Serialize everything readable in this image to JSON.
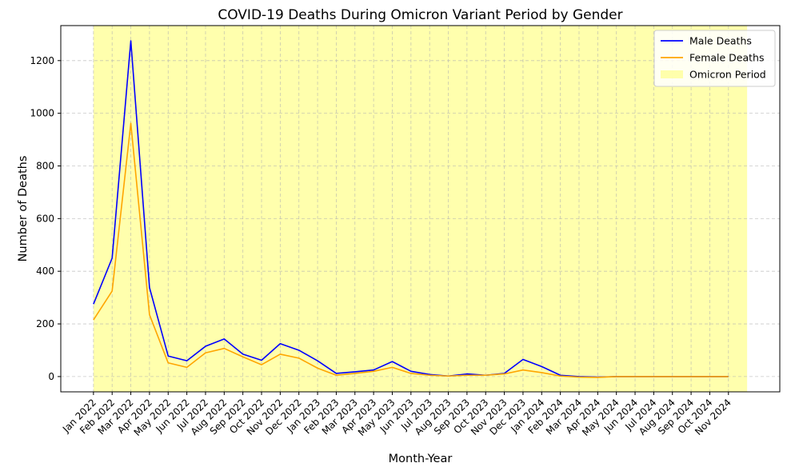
{
  "chart_data": {
    "type": "line",
    "title": "COVID-19 Deaths During Omicron Variant Period by Gender",
    "xlabel": "Month-Year",
    "ylabel": "Number of Deaths",
    "categories": [
      "Jan 2022",
      "Feb 2022",
      "Mar 2022",
      "Apr 2022",
      "May 2022",
      "Jun 2022",
      "Jul 2022",
      "Aug 2022",
      "Sep 2022",
      "Oct 2022",
      "Nov 2022",
      "Dec 2022",
      "Jan 2023",
      "Feb 2023",
      "Mar 2023",
      "Apr 2023",
      "May 2023",
      "Jun 2023",
      "Jul 2023",
      "Aug 2023",
      "Sep 2023",
      "Oct 2023",
      "Nov 2023",
      "Dec 2023",
      "Jan 2024",
      "Feb 2024",
      "Mar 2024",
      "Apr 2024",
      "May 2024",
      "Jun 2024",
      "Jul 2024",
      "Aug 2024",
      "Sep 2024",
      "Oct 2024",
      "Nov 2024"
    ],
    "series": [
      {
        "name": "Male Deaths",
        "color": "#0000ff",
        "values": [
          275,
          450,
          1275,
          338,
          78,
          60,
          115,
          143,
          85,
          62,
          125,
          100,
          60,
          12,
          18,
          25,
          57,
          20,
          8,
          2,
          10,
          5,
          12,
          65,
          38,
          5,
          0,
          -2,
          0,
          0,
          0,
          0,
          0,
          0,
          0
        ]
      },
      {
        "name": "Female Deaths",
        "color": "#ffa500",
        "values": [
          215,
          325,
          962,
          235,
          52,
          35,
          90,
          107,
          75,
          45,
          85,
          70,
          32,
          5,
          12,
          20,
          35,
          12,
          5,
          2,
          5,
          5,
          10,
          25,
          15,
          2,
          -2,
          -3,
          0,
          0,
          0,
          0,
          0,
          0,
          0
        ]
      }
    ],
    "shaded_region": {
      "label": "Omicron Period",
      "color": "#ffff99",
      "start_index": 0,
      "end_index": 35.0
    },
    "ylim": [
      -58,
      1333
    ],
    "xlim": [
      -1.75,
      36.75
    ],
    "yticks": [
      0,
      200,
      400,
      600,
      800,
      1000,
      1200
    ],
    "grid": true,
    "legend_position": "top-right"
  }
}
